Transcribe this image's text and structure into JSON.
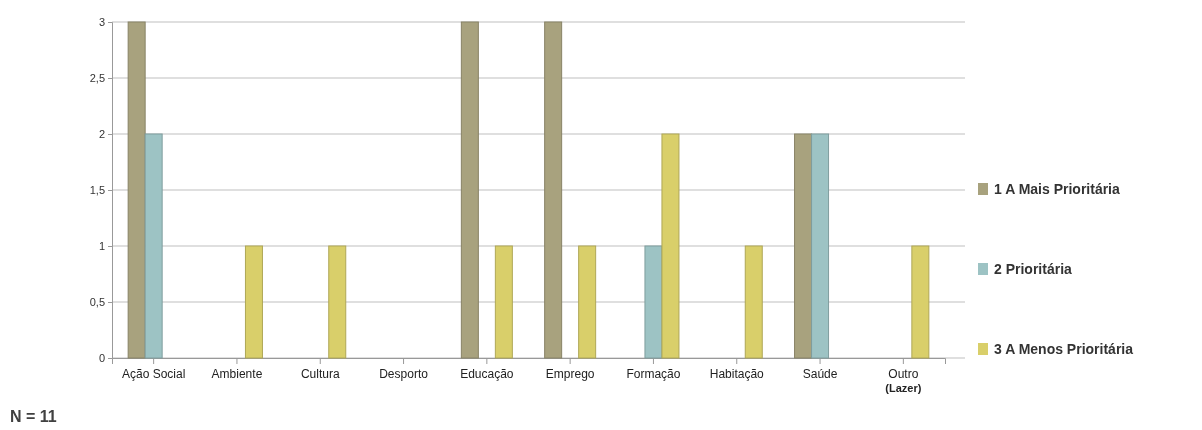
{
  "chart_data": {
    "type": "bar",
    "categories": [
      "Ação Social",
      "Ambiente",
      "Cultura",
      "Desporto",
      "Educação",
      "Emprego",
      "Formação",
      "Habitação",
      "Saúde",
      "Outro\n(Lazer)"
    ],
    "series": [
      {
        "name": "1 A Mais Prioritária",
        "color": "#a8a27e",
        "values": [
          3,
          0,
          0,
          0,
          3,
          3,
          0,
          0,
          2,
          0
        ]
      },
      {
        "name": "2 Prioritária",
        "color": "#9dc3c4",
        "values": [
          2,
          0,
          0,
          0,
          0,
          0,
          1,
          0,
          2,
          0
        ]
      },
      {
        "name": "3 A Menos Prioritária",
        "color": "#d9cf6a",
        "values": [
          0,
          1,
          1,
          0,
          1,
          1,
          2,
          1,
          0,
          1
        ]
      }
    ],
    "ylim": [
      0,
      3
    ],
    "yticks": [
      0,
      {
        "value": 0.5,
        "label": "0,5"
      },
      1,
      {
        "value": 1.5,
        "label": "1,5"
      },
      2,
      {
        "value": 2.5,
        "label": "2,5"
      },
      3
    ],
    "grid": "y",
    "legend": "right",
    "annotations": [
      "N = 11"
    ]
  }
}
